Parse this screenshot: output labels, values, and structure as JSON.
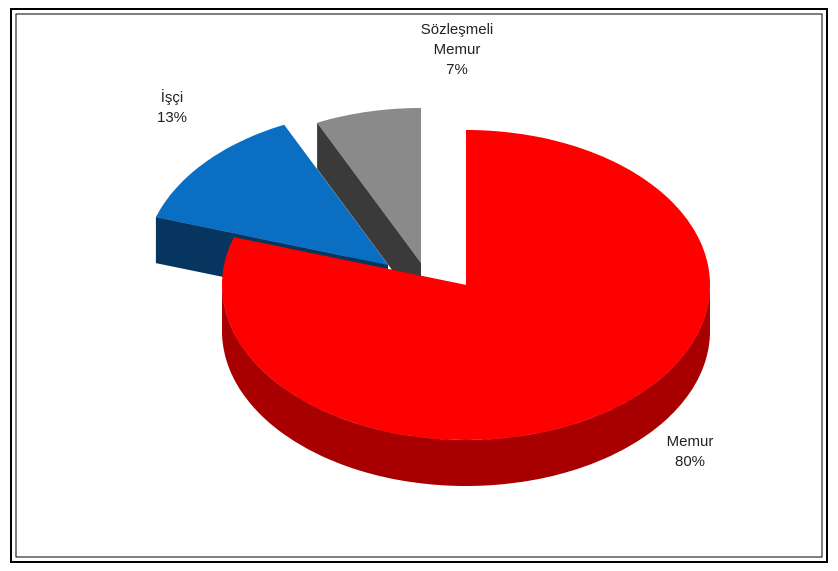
{
  "chart_data": {
    "type": "pie",
    "categories": [
      "Memur",
      "İşçi",
      "Sözleşmeli Memur"
    ],
    "values": [
      80,
      13,
      7
    ],
    "value_labels": [
      "80%",
      "13%",
      "7%"
    ],
    "colors": [
      "#ff0000",
      "#0a6fc2",
      "#8a8a8a"
    ],
    "side_colors": [
      "#a80000",
      "#06365f",
      "#3a3a3a"
    ]
  }
}
